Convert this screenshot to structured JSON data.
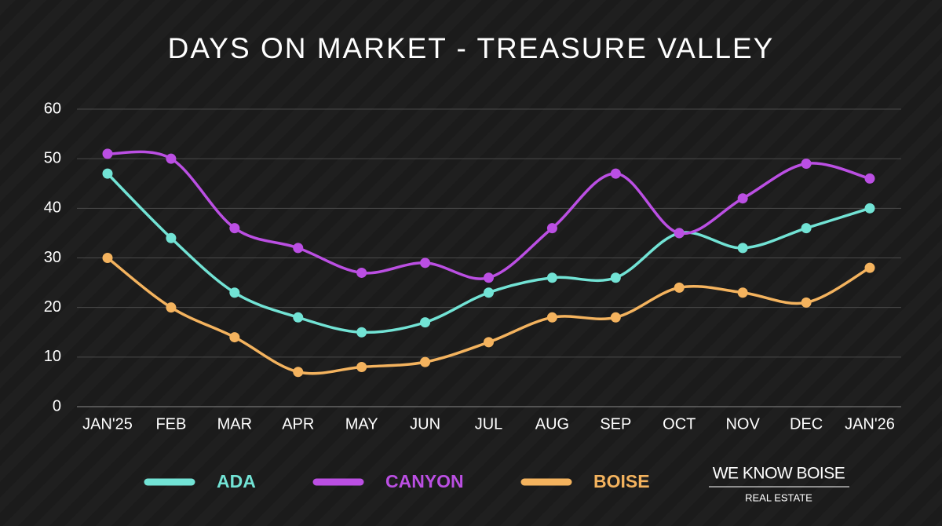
{
  "chart_data": {
    "type": "line",
    "title": "DAYS ON MARKET - TREASURE VALLEY",
    "categories": [
      "JAN'25",
      "FEB",
      "MAR",
      "APR",
      "MAY",
      "JUN",
      "JUL",
      "AUG",
      "SEP",
      "OCT",
      "NOV",
      "DEC",
      "JAN'26"
    ],
    "series": [
      {
        "name": "ADA",
        "color": "#72e3d5",
        "values": [
          47,
          34,
          23,
          18,
          15,
          17,
          23,
          26,
          26,
          35,
          32,
          36,
          40
        ]
      },
      {
        "name": "CANYON",
        "color": "#bb4fe3",
        "values": [
          51,
          50,
          36,
          32,
          27,
          29,
          26,
          36,
          47,
          35,
          42,
          49,
          46
        ]
      },
      {
        "name": "BOISE",
        "color": "#f4b35e",
        "values": [
          30,
          20,
          14,
          7,
          8,
          9,
          13,
          18,
          18,
          24,
          23,
          21,
          28
        ]
      }
    ],
    "ylim": [
      0,
      60
    ],
    "yticks": [
      0,
      10,
      20,
      30,
      40,
      50,
      60
    ],
    "grid": true,
    "smooth": true,
    "legend": "bottom"
  },
  "logo": {
    "name": "WE KNOW BOISE",
    "tagline": "REAL ESTATE"
  }
}
